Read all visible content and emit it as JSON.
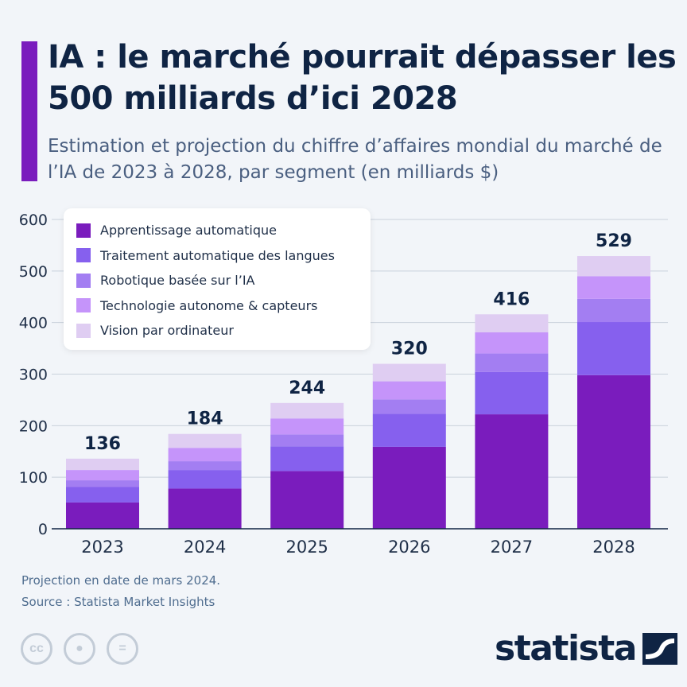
{
  "header": {
    "title": "IA : le marché pourrait dépasser les 500 milliards d’ici 2028",
    "subtitle": "Estimation et projection du chiffre d’affaires mondial du marché de l’IA de 2023 à 2028, par segment (en milliards $)"
  },
  "colors": {
    "accent": "#7a1cbd",
    "title": "#0f2444"
  },
  "chart_data": {
    "type": "bar",
    "stacked": true,
    "categories": [
      "2023",
      "2024",
      "2025",
      "2026",
      "2027",
      "2028"
    ],
    "totals": [
      "136",
      "184",
      "244",
      "320",
      "416",
      "529"
    ],
    "series": [
      {
        "name": "Apprentissage automatique",
        "color": "#7a1cbd",
        "values": [
          51,
          78,
          112,
          159,
          222,
          298
        ]
      },
      {
        "name": "Traitement automatique des langues",
        "color": "#8660ee",
        "values": [
          30,
          36,
          48,
          64,
          82,
          103
        ]
      },
      {
        "name": "Robotique basée sur l’IA",
        "color": "#a37ef2",
        "values": [
          13,
          17,
          23,
          28,
          36,
          45
        ]
      },
      {
        "name": "Technologie autonome & capteurs",
        "color": "#c594fa",
        "values": [
          20,
          26,
          31,
          35,
          41,
          44
        ]
      },
      {
        "name": "Vision par ordinateur",
        "color": "#dfcdf2",
        "values": [
          22,
          27,
          30,
          34,
          35,
          39
        ]
      }
    ],
    "yticks": [
      "0",
      "100",
      "200",
      "300",
      "400",
      "500",
      "600"
    ],
    "ylim": [
      0,
      600
    ],
    "grid": true,
    "legend": "top-left",
    "xlabel": "",
    "ylabel": ""
  },
  "footer": {
    "note": "Projection en date de mars 2024.",
    "source": "Source : Statista Market Insights",
    "logo": "statista",
    "cc_icons": [
      "cc-icon",
      "person-icon",
      "equals-icon"
    ]
  }
}
